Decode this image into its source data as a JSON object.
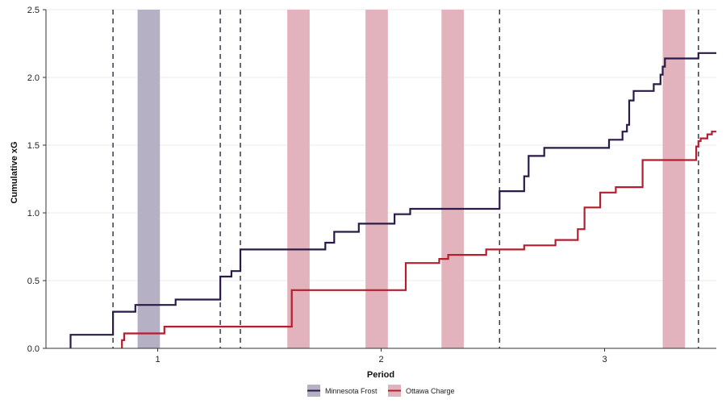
{
  "chart_data": {
    "type": "line",
    "subtype": "step",
    "title": "",
    "xlabel": "Period",
    "ylabel": "Cumulative xG",
    "xlim": [
      0.5,
      3.5
    ],
    "ylim": [
      0,
      2.5
    ],
    "x_ticks": [
      1,
      2,
      3
    ],
    "x_tick_labels": [
      "1",
      "2",
      "3"
    ],
    "y_ticks": [
      0,
      0.5,
      1,
      1.5,
      2,
      2.5
    ],
    "y_tick_labels": [
      "0.0",
      "0.5",
      "1.0",
      "1.5",
      "2.0",
      "2.5"
    ],
    "grid": "horizontal",
    "legend_position": "bottom",
    "series": [
      {
        "name": "Minnesota Frost",
        "color": "#2a1a47",
        "points": [
          [
            0.61,
            0.0
          ],
          [
            0.61,
            0.1
          ],
          [
            0.8,
            0.1
          ],
          [
            0.8,
            0.27
          ],
          [
            0.9,
            0.27
          ],
          [
            0.9,
            0.32
          ],
          [
            1.08,
            0.32
          ],
          [
            1.08,
            0.36
          ],
          [
            1.28,
            0.36
          ],
          [
            1.28,
            0.53
          ],
          [
            1.33,
            0.53
          ],
          [
            1.33,
            0.57
          ],
          [
            1.37,
            0.57
          ],
          [
            1.37,
            0.73
          ],
          [
            1.75,
            0.73
          ],
          [
            1.75,
            0.78
          ],
          [
            1.79,
            0.78
          ],
          [
            1.79,
            0.86
          ],
          [
            1.9,
            0.86
          ],
          [
            1.9,
            0.92
          ],
          [
            2.06,
            0.92
          ],
          [
            2.06,
            0.99
          ],
          [
            2.13,
            0.99
          ],
          [
            2.13,
            1.03
          ],
          [
            2.53,
            1.03
          ],
          [
            2.53,
            1.16
          ],
          [
            2.64,
            1.16
          ],
          [
            2.64,
            1.27
          ],
          [
            2.66,
            1.27
          ],
          [
            2.66,
            1.42
          ],
          [
            2.73,
            1.42
          ],
          [
            2.73,
            1.48
          ],
          [
            3.02,
            1.48
          ],
          [
            3.02,
            1.54
          ],
          [
            3.08,
            1.54
          ],
          [
            3.08,
            1.6
          ],
          [
            3.1,
            1.6
          ],
          [
            3.1,
            1.65
          ],
          [
            3.11,
            1.65
          ],
          [
            3.11,
            1.83
          ],
          [
            3.13,
            1.83
          ],
          [
            3.13,
            1.9
          ],
          [
            3.22,
            1.9
          ],
          [
            3.22,
            1.95
          ],
          [
            3.25,
            1.95
          ],
          [
            3.25,
            2.02
          ],
          [
            3.26,
            2.02
          ],
          [
            3.26,
            2.08
          ],
          [
            3.27,
            2.08
          ],
          [
            3.27,
            2.14
          ],
          [
            3.42,
            2.14
          ],
          [
            3.42,
            2.18
          ],
          [
            3.5,
            2.18
          ]
        ]
      },
      {
        "name": "Ottawa Charge",
        "color": "#b41e2e",
        "points": [
          [
            0.84,
            0.0
          ],
          [
            0.84,
            0.06
          ],
          [
            0.85,
            0.06
          ],
          [
            0.85,
            0.11
          ],
          [
            1.03,
            0.11
          ],
          [
            1.03,
            0.16
          ],
          [
            1.6,
            0.16
          ],
          [
            1.6,
            0.43
          ],
          [
            2.11,
            0.43
          ],
          [
            2.11,
            0.63
          ],
          [
            2.26,
            0.63
          ],
          [
            2.26,
            0.66
          ],
          [
            2.3,
            0.66
          ],
          [
            2.3,
            0.69
          ],
          [
            2.47,
            0.69
          ],
          [
            2.47,
            0.73
          ],
          [
            2.64,
            0.73
          ],
          [
            2.64,
            0.76
          ],
          [
            2.78,
            0.76
          ],
          [
            2.78,
            0.8
          ],
          [
            2.88,
            0.8
          ],
          [
            2.88,
            0.88
          ],
          [
            2.91,
            0.88
          ],
          [
            2.91,
            1.04
          ],
          [
            2.98,
            1.04
          ],
          [
            2.98,
            1.15
          ],
          [
            3.05,
            1.15
          ],
          [
            3.05,
            1.19
          ],
          [
            3.17,
            1.19
          ],
          [
            3.17,
            1.39
          ],
          [
            3.41,
            1.39
          ],
          [
            3.41,
            1.49
          ],
          [
            3.42,
            1.49
          ],
          [
            3.42,
            1.53
          ],
          [
            3.43,
            1.53
          ],
          [
            3.43,
            1.55
          ],
          [
            3.46,
            1.55
          ],
          [
            3.46,
            1.58
          ],
          [
            3.48,
            1.58
          ],
          [
            3.48,
            1.6
          ],
          [
            3.5,
            1.6
          ]
        ]
      }
    ],
    "period_separators": [
      0.8,
      1.28,
      1.37,
      2.53,
      3.42
    ],
    "penalty_bands": [
      {
        "team": "Minnesota Frost",
        "start": 0.91,
        "end": 1.01,
        "color": "#b5b0c4"
      },
      {
        "team": "Ottawa Charge",
        "start": 1.58,
        "end": 1.68,
        "color": "#e3b3bd"
      },
      {
        "team": "Ottawa Charge",
        "start": 1.93,
        "end": 2.03,
        "color": "#e3b3bd"
      },
      {
        "team": "Ottawa Charge",
        "start": 2.27,
        "end": 2.37,
        "color": "#e3b3bd"
      },
      {
        "team": "Ottawa Charge",
        "start": 3.26,
        "end": 3.36,
        "color": "#e3b3bd"
      }
    ],
    "legend": [
      {
        "label": "Minnesota Frost",
        "line_color": "#2a1a47",
        "fill_color": "#b5b0c4"
      },
      {
        "label": "Ottawa Charge",
        "line_color": "#b41e2e",
        "fill_color": "#e3b3bd"
      }
    ]
  }
}
